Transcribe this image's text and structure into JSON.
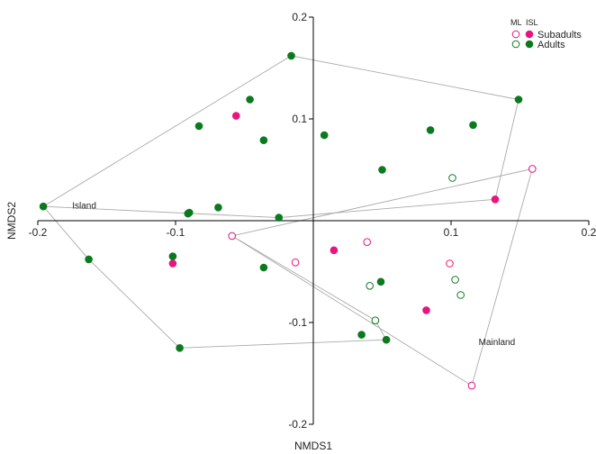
{
  "chart_data": {
    "type": "scatter",
    "title": "",
    "xlabel": "NMDS1",
    "ylabel": "NMDS2",
    "xlim": [
      -0.2,
      0.2
    ],
    "ylim": [
      -0.2,
      0.2
    ],
    "xticks": [
      -0.2,
      -0.1,
      0,
      0.1,
      0.2
    ],
    "yticks": [
      -0.2,
      -0.1,
      0.1,
      0.2
    ],
    "xtick_labels": [
      "-0.2",
      "-0.1",
      "",
      "0.1",
      "0.2"
    ],
    "ytick_labels": [
      "-0.2",
      "-0.1",
      "0.1",
      "0.2"
    ],
    "grid": false,
    "legend": {
      "placement": "top-right",
      "header_ml": "ML",
      "header_isl": "ISL",
      "entries": [
        {
          "label": "Subadults",
          "color": "#e8147f"
        },
        {
          "label": "Adults",
          "color": "#0b7a1e"
        }
      ]
    },
    "colors": {
      "subadults": "#e8147f",
      "adults": "#0b7a1e",
      "hull": "#aaaaaa"
    },
    "series": [
      {
        "name": "Subadults",
        "group": "ML",
        "filled": false,
        "color": "#e8147f",
        "x": [
          -0.059,
          -0.013,
          0.039,
          0.099,
          0.159,
          0.115
        ],
        "y": [
          -0.015,
          -0.041,
          -0.021,
          -0.042,
          0.051,
          -0.162
        ]
      },
      {
        "name": "Subadults",
        "group": "ISL",
        "filled": true,
        "color": "#e8147f",
        "x": [
          -0.056,
          -0.102,
          0.015,
          0.082,
          0.132
        ],
        "y": [
          0.103,
          -0.042,
          -0.029,
          -0.088,
          0.021
        ]
      },
      {
        "name": "Adults",
        "group": "ML",
        "filled": false,
        "color": "#0b7a1e",
        "x": [
          0.101,
          0.041,
          0.103,
          0.107,
          0.045
        ],
        "y": [
          0.042,
          -0.064,
          -0.058,
          -0.073,
          -0.098
        ]
      },
      {
        "name": "Adults",
        "group": "ISL",
        "filled": true,
        "color": "#0b7a1e",
        "x": [
          -0.016,
          -0.046,
          -0.083,
          -0.036,
          0.008,
          0.085,
          0.116,
          0.149,
          0.05,
          -0.196,
          -0.09,
          -0.091,
          -0.069,
          -0.025,
          -0.163,
          -0.102,
          -0.036,
          -0.097,
          0.049,
          0.035,
          0.053
        ],
        "y": [
          0.162,
          0.119,
          0.093,
          0.079,
          0.084,
          0.089,
          0.094,
          0.119,
          0.05,
          0.014,
          0.008,
          0.007,
          0.013,
          0.003,
          -0.038,
          -0.035,
          -0.046,
          -0.125,
          -0.06,
          -0.112,
          -0.117
        ]
      }
    ],
    "hulls": [
      {
        "name": "Island",
        "x": [
          -0.196,
          -0.016,
          0.149,
          0.132,
          -0.025,
          -0.196
        ],
        "y": [
          0.014,
          0.162,
          0.119,
          0.021,
          0.003,
          0.014
        ]
      },
      {
        "name": "Island",
        "x": [
          -0.196,
          -0.163,
          -0.097,
          0.053,
          0.045,
          -0.059
        ],
        "y": [
          0.014,
          -0.038,
          -0.125,
          -0.117,
          -0.098,
          -0.015
        ]
      },
      {
        "name": "Mainland",
        "x": [
          -0.059,
          0.159,
          0.115,
          -0.059
        ],
        "y": [
          -0.015,
          0.051,
          -0.162,
          -0.015
        ]
      }
    ],
    "annotations": [
      {
        "text": "Island",
        "x": -0.175,
        "y": 0.012
      },
      {
        "text": "Mainland",
        "x": 0.12,
        "y": -0.122
      }
    ]
  }
}
